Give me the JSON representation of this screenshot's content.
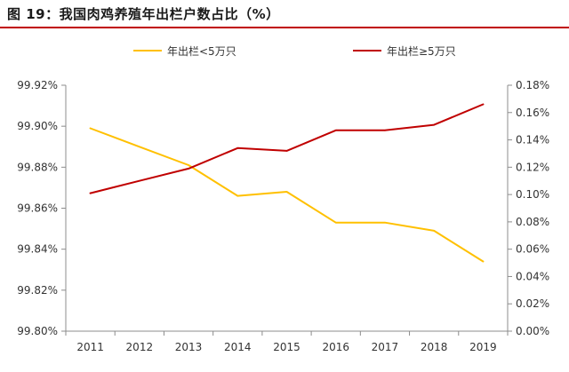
{
  "figure_title": "图 19：我国肉鸡养殖年出栏户数占比（%）",
  "chart_data": {
    "type": "line",
    "title": "",
    "xlabel": "",
    "ylabel": "",
    "x": [
      "2011",
      "2012",
      "2013",
      "2014",
      "2015",
      "2016",
      "2017",
      "2018",
      "2019"
    ],
    "left_axis": {
      "ylim": [
        99.8,
        99.92
      ],
      "ticks": [
        "99.80%",
        "99.82%",
        "99.84%",
        "99.86%",
        "99.88%",
        "99.90%",
        "99.92%"
      ]
    },
    "right_axis": {
      "ylim": [
        0.0,
        0.18
      ],
      "ticks": [
        "0.00%",
        "0.02%",
        "0.04%",
        "0.06%",
        "0.08%",
        "0.10%",
        "0.12%",
        "0.14%",
        "0.16%",
        "0.18%"
      ]
    },
    "series": [
      {
        "name": "年出栏<5万只",
        "axis": "left",
        "color": "#ffc000",
        "values": [
          99.899,
          99.89,
          99.881,
          99.866,
          99.868,
          99.853,
          99.853,
          99.849,
          99.834
        ]
      },
      {
        "name": "年出栏≥5万只",
        "axis": "right",
        "color": "#c00000",
        "values": [
          0.101,
          0.11,
          0.119,
          0.134,
          0.132,
          0.147,
          0.147,
          0.151,
          0.166
        ]
      }
    ],
    "legend_position": "top",
    "grid": false
  }
}
